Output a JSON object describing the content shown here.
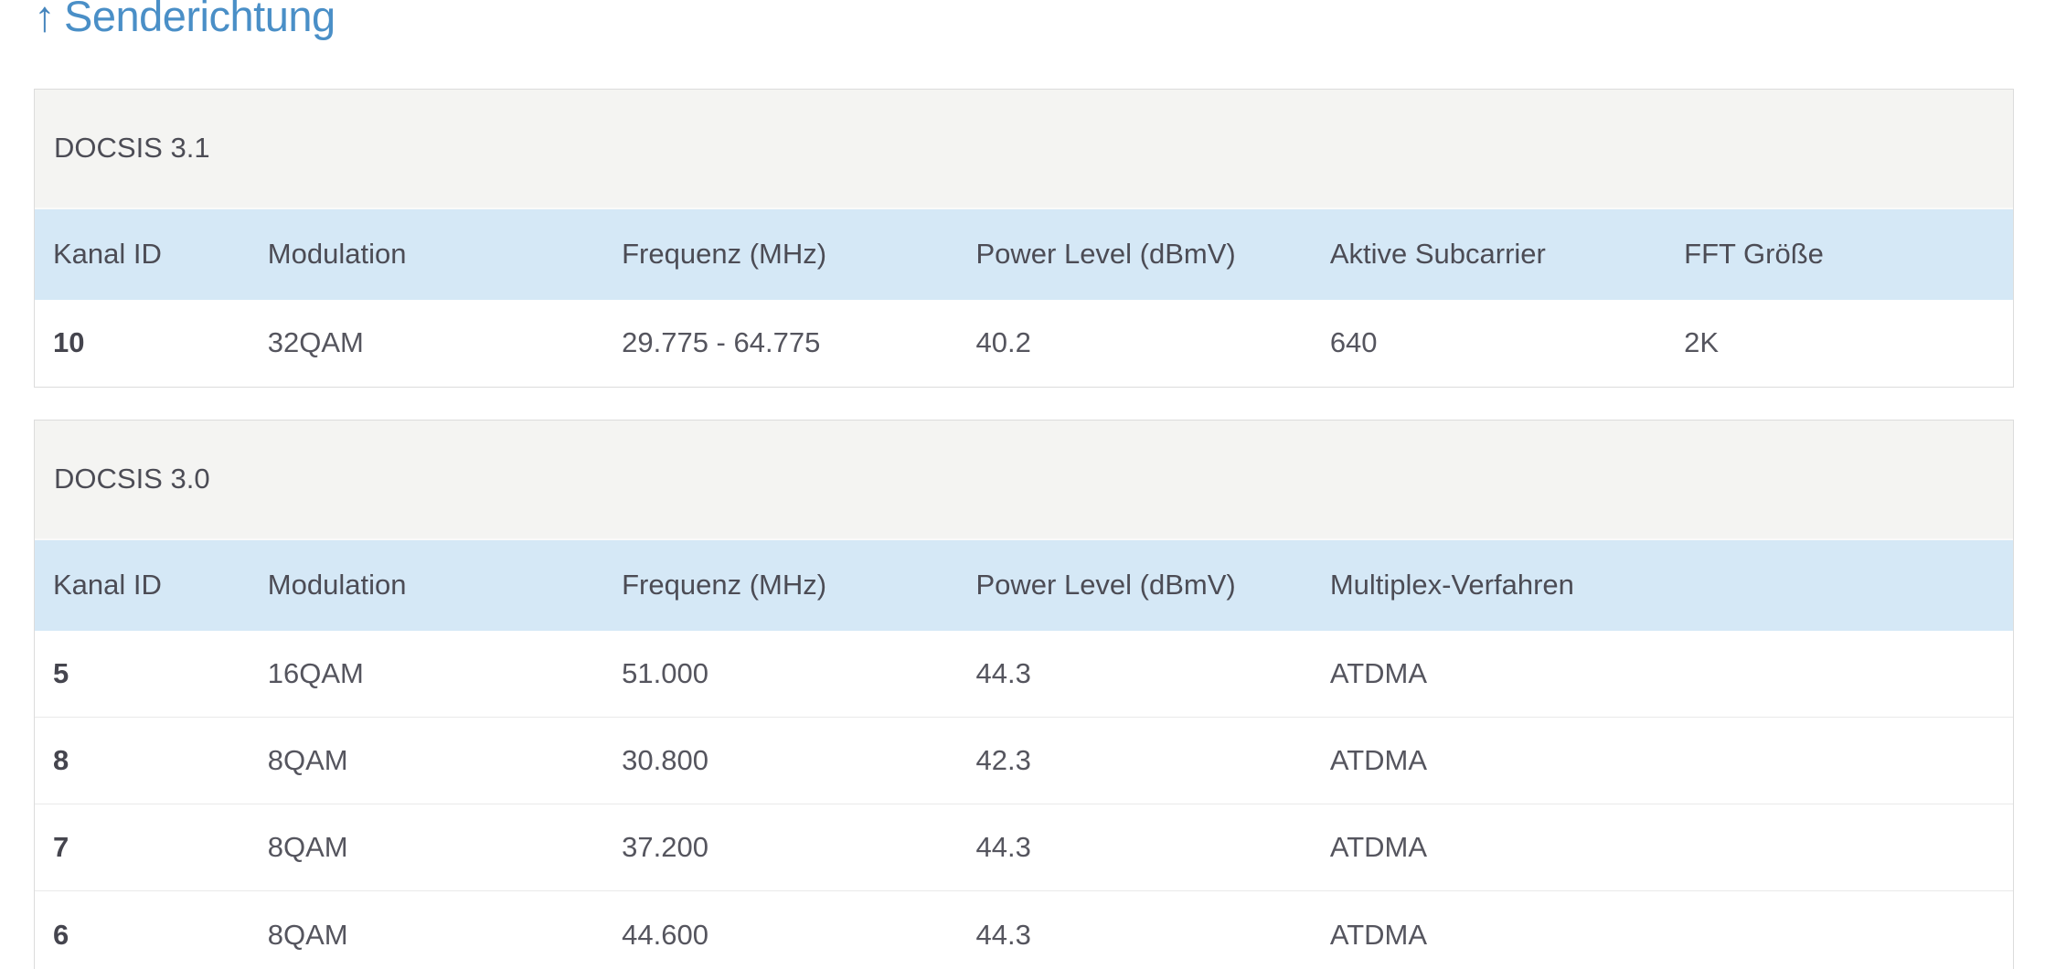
{
  "page": {
    "title": {
      "arrow": "↑",
      "label": "Senderichtung"
    }
  },
  "colors": {
    "title_blue": "#4a8fc7",
    "table_header_row_bg": "#d5e8f6",
    "section_header_bg": "#f4f4f2",
    "body_text": "#4d4d56",
    "panel_border": "#dcdcdc"
  },
  "icons": {
    "up_arrow": "↑"
  },
  "tables": [
    {
      "section": "DOCSIS 3.1",
      "columns": [
        "Kanal ID",
        "Modulation",
        "Frequenz (MHz)",
        "Power Level (dBmV)",
        "Aktive Subcarrier",
        "FFT Größe"
      ],
      "rows": [
        [
          "10",
          "32QAM",
          "29.775 - 64.775",
          "40.2",
          "640",
          "2K"
        ]
      ]
    },
    {
      "section": "DOCSIS 3.0",
      "columns": [
        "Kanal ID",
        "Modulation",
        "Frequenz (MHz)",
        "Power Level (dBmV)",
        "Multiplex-Verfahren"
      ],
      "rows": [
        [
          "5",
          "16QAM",
          "51.000",
          "44.3",
          "ATDMA"
        ],
        [
          "8",
          "8QAM",
          "30.800",
          "42.3",
          "ATDMA"
        ],
        [
          "7",
          "8QAM",
          "37.200",
          "44.3",
          "ATDMA"
        ],
        [
          "6",
          "8QAM",
          "44.600",
          "44.3",
          "ATDMA"
        ]
      ]
    }
  ]
}
